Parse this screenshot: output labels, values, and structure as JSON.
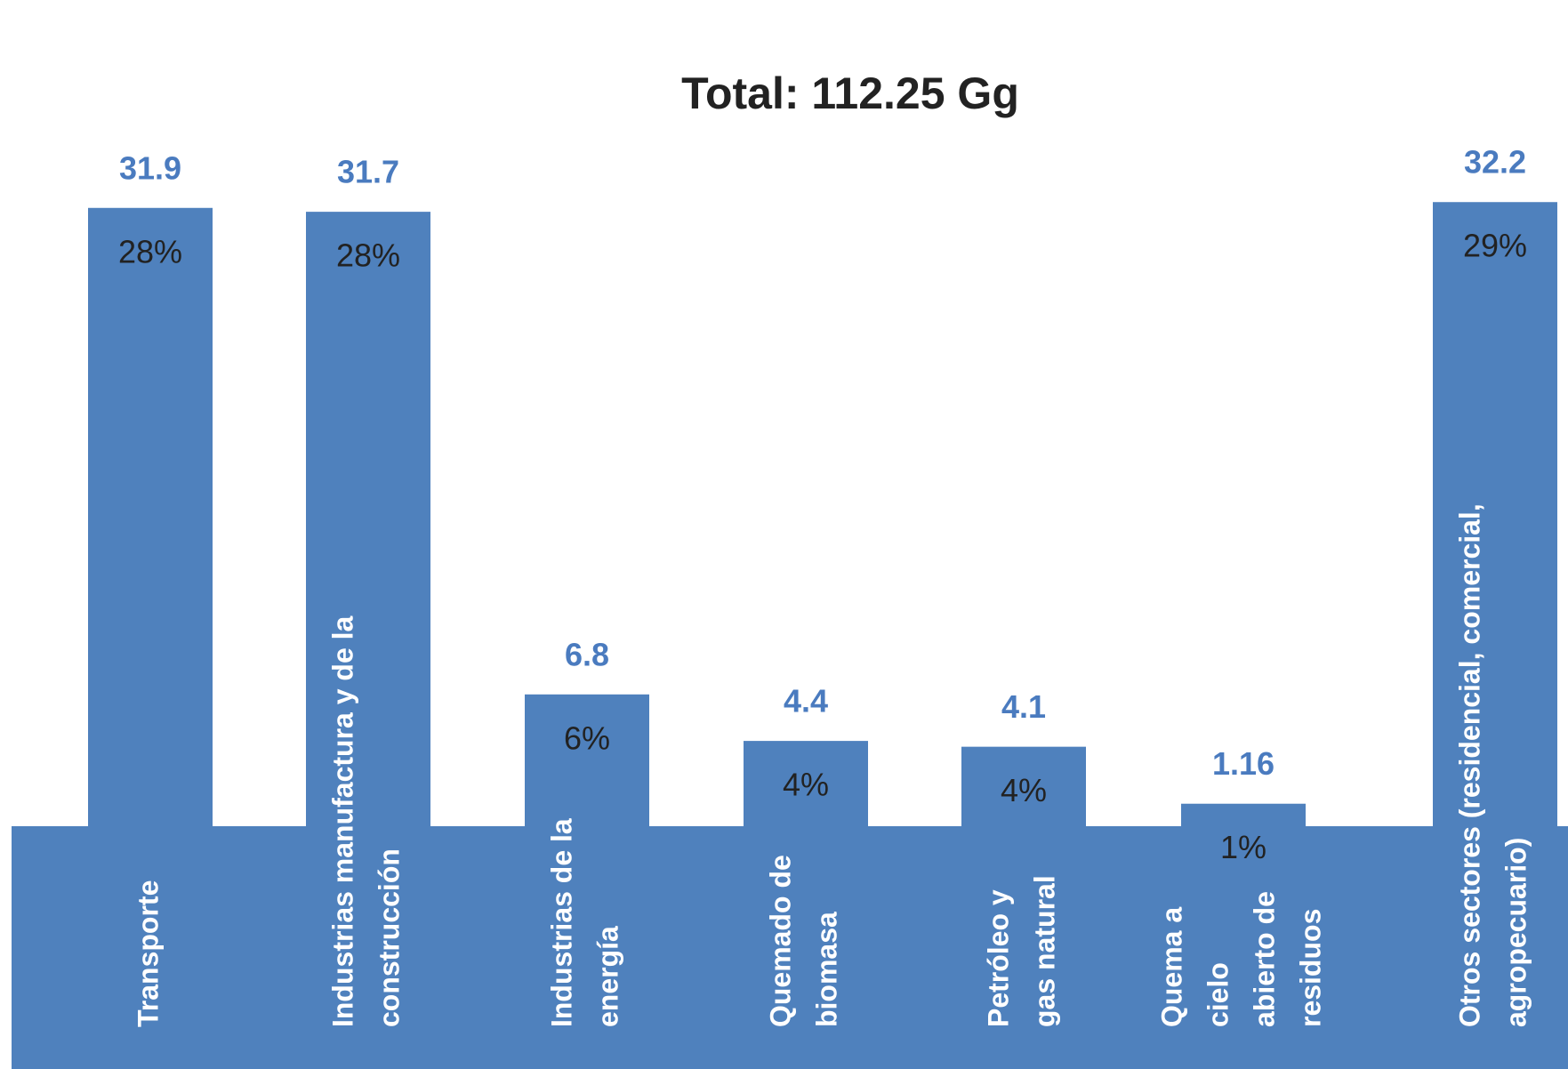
{
  "chart_data": {
    "type": "bar",
    "title": "Total: 112.25 Gg",
    "categories": [
      [
        "Transporte"
      ],
      [
        "Industrias manufactura y de la",
        "construcción"
      ],
      [
        "Industrias de la",
        "energía"
      ],
      [
        "Quemado de",
        "biomasa"
      ],
      [
        "Petróleo y",
        "gas natural"
      ],
      [
        "Quema a",
        "cielo",
        "abierto de",
        "residuos"
      ],
      [
        "Otros sectores (residencial, comercial,",
        "agropecuario)"
      ]
    ],
    "values": [
      31.9,
      31.7,
      6.8,
      4.4,
      4.1,
      1.16,
      32.2
    ],
    "share_labels": [
      "28%",
      "28%",
      "6%",
      "4%",
      "4%",
      "1%",
      "29%"
    ],
    "color": "#4f81bd",
    "ylim": [
      0,
      34
    ]
  }
}
